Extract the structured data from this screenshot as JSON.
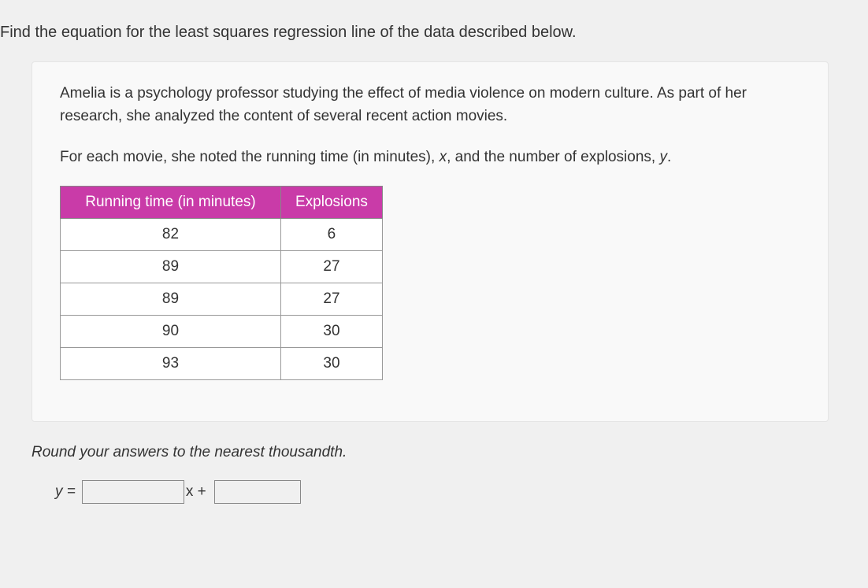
{
  "question": "Find the equation for the least squares regression line of the data described below.",
  "card": {
    "paragraph1": "Amelia is a psychology professor studying the effect of media violence on modern culture. As part of her research, she analyzed the content of several recent action movies.",
    "paragraph2_pre": "For each movie, she noted the running time (in minutes), ",
    "paragraph2_x": "x",
    "paragraph2_mid": ", and the number of explosions, ",
    "paragraph2_y": "y",
    "paragraph2_post": "."
  },
  "table": {
    "headers": [
      "Running time (in minutes)",
      "Explosions"
    ],
    "rows": [
      [
        "82",
        "6"
      ],
      [
        "89",
        "27"
      ],
      [
        "89",
        "27"
      ],
      [
        "90",
        "30"
      ],
      [
        "93",
        "30"
      ]
    ],
    "header_bg_color": "#c93ba8",
    "header_text_color": "#ffffff",
    "border_color": "#999999",
    "cell_bg_color": "#ffffff",
    "col1_width": 280,
    "col2_width": 110
  },
  "instruction": "Round your answers to the nearest thousandth.",
  "answer": {
    "y_equals": "y =",
    "x_plus": "x +"
  },
  "colors": {
    "page_bg": "#f0f0f0",
    "card_bg": "#f9f9f9",
    "text_color": "#333333"
  }
}
